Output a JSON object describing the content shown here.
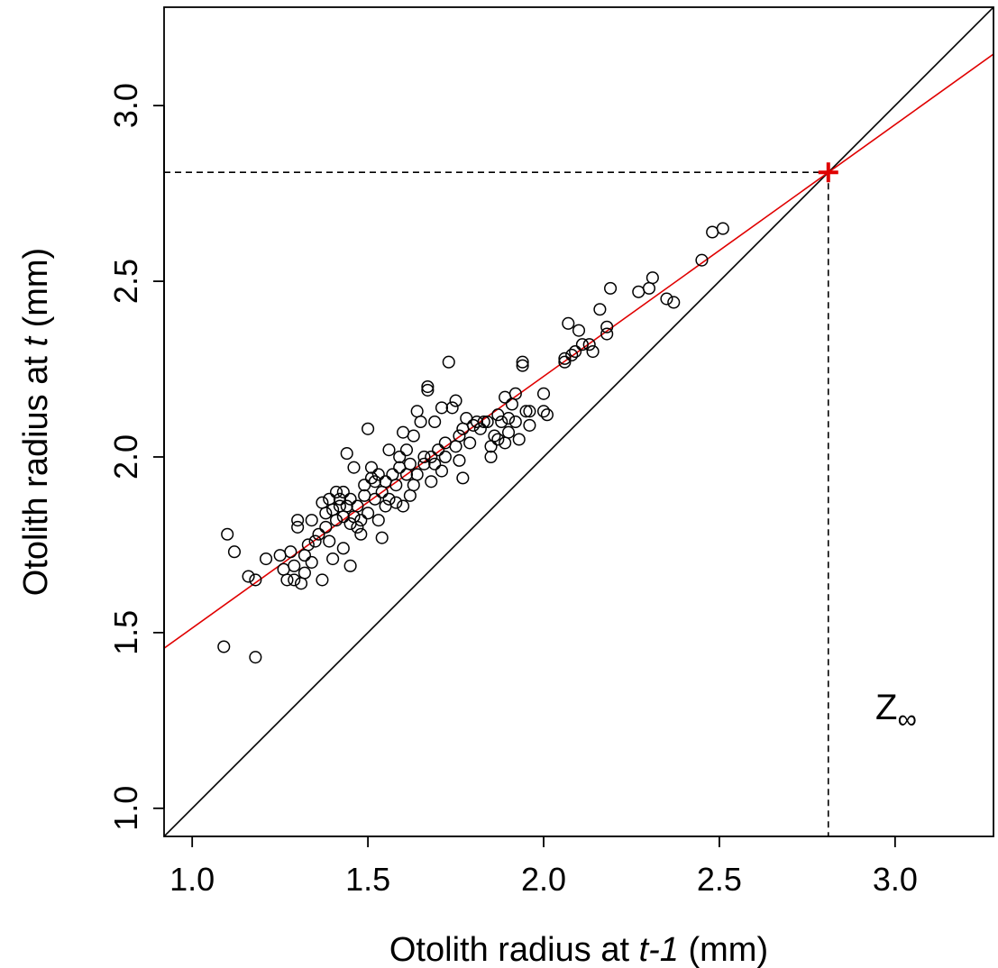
{
  "chart_data": {
    "type": "scatter",
    "title": "",
    "xlabel": {
      "pre": "Otolith radius at ",
      "italic": "t-1",
      "post": " (mm)"
    },
    "ylabel": {
      "pre": "Otolith radius at ",
      "italic": "t",
      "post": " (mm)"
    },
    "xlim": [
      0.92,
      3.28
    ],
    "ylim": [
      0.92,
      3.28
    ],
    "xticks": [
      1.0,
      1.5,
      2.0,
      2.5,
      3.0
    ],
    "yticks": [
      1.0,
      1.5,
      2.0,
      2.5,
      3.0
    ],
    "xtick_labels": [
      "1.0",
      "1.5",
      "2.0",
      "2.5",
      "3.0"
    ],
    "ytick_labels": [
      "1.0",
      "1.5",
      "2.0",
      "2.5",
      "3.0"
    ],
    "grid": false,
    "legend": null,
    "colors": {
      "points": "#000000",
      "fit_line": "#e00000",
      "identity_line": "#000000",
      "equilibrium_marker": "#e00000"
    },
    "fit_line": {
      "slope": 0.7165,
      "intercept": 0.7964
    },
    "identity_line": {
      "slope": 1,
      "intercept": 0
    },
    "equilibrium_point": {
      "x": 2.81,
      "y": 2.81,
      "marker": "+"
    },
    "annotation": {
      "text": "Z",
      "subscript": "∞",
      "x": 2.98,
      "y": 1.29
    },
    "points": [
      [
        1.09,
        1.46
      ],
      [
        1.18,
        1.43
      ],
      [
        1.1,
        1.78
      ],
      [
        1.12,
        1.73
      ],
      [
        1.16,
        1.66
      ],
      [
        1.18,
        1.65
      ],
      [
        1.21,
        1.71
      ],
      [
        1.25,
        1.72
      ],
      [
        1.26,
        1.68
      ],
      [
        1.27,
        1.65
      ],
      [
        1.28,
        1.73
      ],
      [
        1.29,
        1.69
      ],
      [
        1.29,
        1.65
      ],
      [
        1.3,
        1.8
      ],
      [
        1.3,
        1.82
      ],
      [
        1.31,
        1.64
      ],
      [
        1.32,
        1.67
      ],
      [
        1.32,
        1.72
      ],
      [
        1.33,
        1.75
      ],
      [
        1.34,
        1.7
      ],
      [
        1.34,
        1.82
      ],
      [
        1.35,
        1.76
      ],
      [
        1.36,
        1.78
      ],
      [
        1.37,
        1.65
      ],
      [
        1.37,
        1.87
      ],
      [
        1.38,
        1.8
      ],
      [
        1.38,
        1.84
      ],
      [
        1.39,
        1.76
      ],
      [
        1.39,
        1.88
      ],
      [
        1.4,
        1.71
      ],
      [
        1.4,
        1.85
      ],
      [
        1.41,
        1.82
      ],
      [
        1.41,
        1.9
      ],
      [
        1.42,
        1.86
      ],
      [
        1.42,
        1.88
      ],
      [
        1.43,
        1.74
      ],
      [
        1.43,
        1.83
      ],
      [
        1.43,
        1.9
      ],
      [
        1.44,
        1.86
      ],
      [
        1.44,
        2.01
      ],
      [
        1.45,
        1.69
      ],
      [
        1.45,
        1.81
      ],
      [
        1.45,
        1.88
      ],
      [
        1.46,
        1.97
      ],
      [
        1.46,
        1.83
      ],
      [
        1.47,
        1.8
      ],
      [
        1.47,
        1.86
      ],
      [
        1.48,
        1.78
      ],
      [
        1.48,
        1.82
      ],
      [
        1.49,
        1.89
      ],
      [
        1.49,
        1.92
      ],
      [
        1.5,
        2.08
      ],
      [
        1.5,
        1.84
      ],
      [
        1.51,
        1.94
      ],
      [
        1.51,
        1.97
      ],
      [
        1.52,
        1.88
      ],
      [
        1.52,
        1.93
      ],
      [
        1.53,
        1.82
      ],
      [
        1.53,
        1.95
      ],
      [
        1.54,
        1.77
      ],
      [
        1.54,
        1.9
      ],
      [
        1.55,
        1.86
      ],
      [
        1.55,
        1.93
      ],
      [
        1.56,
        1.88
      ],
      [
        1.56,
        2.02
      ],
      [
        1.57,
        1.95
      ],
      [
        1.58,
        1.87
      ],
      [
        1.58,
        1.92
      ],
      [
        1.59,
        2.0
      ],
      [
        1.59,
        1.97
      ],
      [
        1.6,
        1.86
      ],
      [
        1.6,
        2.07
      ],
      [
        1.61,
        1.95
      ],
      [
        1.61,
        2.02
      ],
      [
        1.62,
        1.89
      ],
      [
        1.62,
        1.98
      ],
      [
        1.63,
        2.06
      ],
      [
        1.63,
        1.92
      ],
      [
        1.64,
        1.95
      ],
      [
        1.64,
        2.13
      ],
      [
        1.65,
        2.1
      ],
      [
        1.66,
        1.98
      ],
      [
        1.66,
        2.0
      ],
      [
        1.67,
        2.19
      ],
      [
        1.67,
        2.2
      ],
      [
        1.68,
        1.93
      ],
      [
        1.68,
        2.0
      ],
      [
        1.69,
        2.1
      ],
      [
        1.69,
        1.98
      ],
      [
        1.7,
        2.02
      ],
      [
        1.71,
        2.14
      ],
      [
        1.71,
        1.96
      ],
      [
        1.72,
        2.04
      ],
      [
        1.72,
        2.0
      ],
      [
        1.73,
        2.27
      ],
      [
        1.74,
        2.14
      ],
      [
        1.75,
        2.03
      ],
      [
        1.75,
        2.16
      ],
      [
        1.76,
        1.99
      ],
      [
        1.76,
        2.06
      ],
      [
        1.77,
        1.94
      ],
      [
        1.77,
        2.08
      ],
      [
        1.78,
        2.11
      ],
      [
        1.79,
        2.04
      ],
      [
        1.8,
        2.09
      ],
      [
        1.81,
        2.1
      ],
      [
        1.82,
        2.08
      ],
      [
        1.83,
        2.1
      ],
      [
        1.84,
        2.1
      ],
      [
        1.85,
        2.0
      ],
      [
        1.85,
        2.03
      ],
      [
        1.86,
        2.06
      ],
      [
        1.87,
        2.12
      ],
      [
        1.87,
        2.05
      ],
      [
        1.88,
        2.1
      ],
      [
        1.89,
        2.04
      ],
      [
        1.89,
        2.17
      ],
      [
        1.9,
        2.07
      ],
      [
        1.9,
        2.11
      ],
      [
        1.91,
        2.15
      ],
      [
        1.92,
        2.1
      ],
      [
        1.92,
        2.18
      ],
      [
        1.93,
        2.05
      ],
      [
        1.94,
        2.26
      ],
      [
        1.94,
        2.27
      ],
      [
        1.95,
        2.13
      ],
      [
        1.96,
        2.13
      ],
      [
        1.96,
        2.09
      ],
      [
        2.0,
        2.18
      ],
      [
        2.0,
        2.13
      ],
      [
        2.01,
        2.12
      ],
      [
        2.06,
        2.27
      ],
      [
        2.06,
        2.28
      ],
      [
        2.07,
        2.38
      ],
      [
        2.08,
        2.29
      ],
      [
        2.09,
        2.3
      ],
      [
        2.1,
        2.36
      ],
      [
        2.11,
        2.32
      ],
      [
        2.13,
        2.32
      ],
      [
        2.14,
        2.3
      ],
      [
        2.16,
        2.42
      ],
      [
        2.18,
        2.37
      ],
      [
        2.18,
        2.35
      ],
      [
        2.19,
        2.48
      ],
      [
        2.27,
        2.47
      ],
      [
        2.3,
        2.48
      ],
      [
        2.31,
        2.51
      ],
      [
        2.35,
        2.45
      ],
      [
        2.37,
        2.44
      ],
      [
        2.45,
        2.56
      ],
      [
        2.48,
        2.64
      ],
      [
        2.51,
        2.65
      ]
    ]
  }
}
